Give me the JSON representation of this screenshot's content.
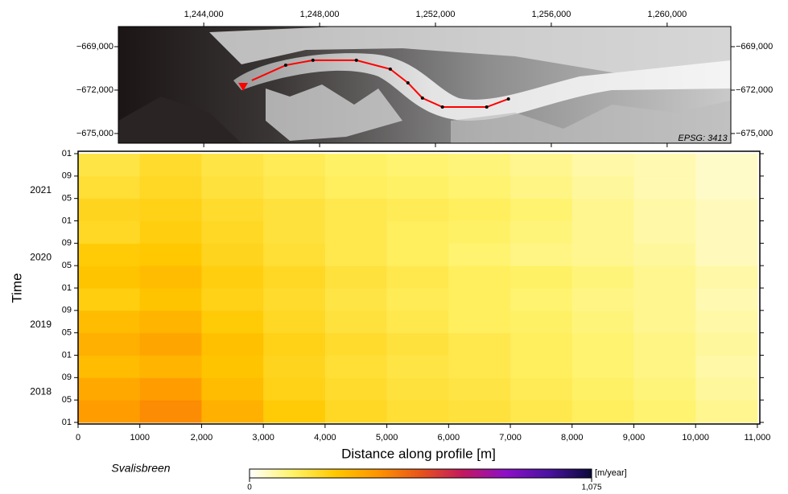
{
  "chart_data": [
    {
      "type": "line",
      "xlim": [
        1241050,
        1262200
      ],
      "ylim": [
        -675670,
        -667610
      ],
      "xticks": [
        {
          "value": 1244000,
          "label": "1,244,000"
        },
        {
          "value": 1248000,
          "label": "1,248,000"
        },
        {
          "value": 1252000,
          "label": "1,252,000"
        },
        {
          "value": 1256000,
          "label": "1,256,000"
        },
        {
          "value": 1260000,
          "label": "1,260,000"
        }
      ],
      "yticks": [
        {
          "value": -669000,
          "label": "−669,000"
        },
        {
          "value": -672000,
          "label": "−672,000"
        },
        {
          "value": -675000,
          "label": "−675,000"
        }
      ],
      "x": [
        1245660,
        1246830,
        1247770,
        1249270,
        1250440,
        1251050,
        1251550,
        1252240,
        1253770,
        1254520
      ],
      "series": [
        {
          "color": "#ff0000",
          "values": [
            -671330,
            -670280,
            -669940,
            -669940,
            -670550,
            -671500,
            -672550,
            -673170,
            -673170,
            -672610
          ]
        }
      ],
      "marker": {
        "x": 1245360,
        "y": -671780,
        "color": "#ff0000"
      },
      "annotation": "EPSG: 3413"
    },
    {
      "type": "heatmap",
      "title": "Svalisbreen",
      "x_label": "Distance along profile [m]",
      "y_label": "Time",
      "xlim": [
        0,
        11040
      ],
      "ylim": [
        "2018-01",
        "2022-01"
      ],
      "xticks": [
        0,
        {
          "value": 1000,
          "label": "1000"
        },
        {
          "value": 2000,
          "label": "2,000"
        },
        {
          "value": 3000,
          "label": "3,000"
        },
        {
          "value": 4000,
          "label": "4,000"
        },
        {
          "value": 5000,
          "label": "5,000"
        },
        {
          "value": 6000,
          "label": "6,000"
        },
        {
          "value": 7000,
          "label": "7,000"
        },
        {
          "value": 8000,
          "label": "8,000"
        },
        {
          "value": 9000,
          "label": "9,000"
        },
        {
          "value": 10000,
          "label": "10,000"
        },
        {
          "value": 11000,
          "label": "11,000"
        }
      ],
      "yticks": [
        {
          "value": "2018-01",
          "label": "01"
        },
        {
          "value": "2018-05",
          "label": "05"
        },
        {
          "value": "2018-09",
          "label": "09"
        },
        {
          "value": "2019-01",
          "label": "01"
        },
        {
          "value": "2019-05",
          "label": "05"
        },
        {
          "value": "2019-09",
          "label": "09"
        },
        {
          "value": "2020-01",
          "label": "01"
        },
        {
          "value": "2020-05",
          "label": "05"
        },
        {
          "value": "2020-09",
          "label": "09"
        },
        {
          "value": "2021-01",
          "label": "01"
        },
        {
          "value": "2021-05",
          "label": "05"
        },
        {
          "value": "2021-09",
          "label": "09"
        },
        {
          "value": "2022-01",
          "label": "01"
        }
      ],
      "year_labels": [
        "2018",
        "2019",
        "2020",
        "2021"
      ],
      "x_bins": [
        0,
        1000,
        2000,
        3000,
        4000,
        5000,
        6000,
        7000,
        8000,
        9000,
        10000,
        11000
      ],
      "y_bins": [
        "2018-01",
        "2018-05",
        "2018-09",
        "2019-01",
        "2019-05",
        "2019-09",
        "2020-01",
        "2020-05",
        "2020-09",
        "2021-01",
        "2021-05",
        "2021-09",
        "2022-01"
      ],
      "values": [
        [
          380,
          420,
          330,
          260,
          220,
          200,
          190,
          170,
          150,
          130,
          100
        ],
        [
          350,
          380,
          300,
          240,
          210,
          190,
          180,
          160,
          140,
          120,
          90
        ],
        [
          300,
          320,
          280,
          230,
          200,
          180,
          170,
          150,
          130,
          110,
          80
        ],
        [
          330,
          360,
          290,
          240,
          210,
          190,
          170,
          150,
          130,
          110,
          90
        ],
        [
          300,
          320,
          260,
          220,
          190,
          170,
          150,
          140,
          120,
          100,
          80
        ],
        [
          250,
          280,
          240,
          210,
          180,
          160,
          150,
          130,
          110,
          100,
          70
        ],
        [
          280,
          300,
          250,
          220,
          190,
          170,
          150,
          140,
          120,
          100,
          80
        ],
        [
          260,
          270,
          230,
          200,
          170,
          150,
          130,
          110,
          100,
          90,
          60
        ],
        [
          220,
          250,
          220,
          190,
          170,
          150,
          140,
          120,
          100,
          80,
          60
        ],
        [
          230,
          240,
          210,
          190,
          170,
          160,
          150,
          130,
          100,
          80,
          60
        ],
        [
          200,
          220,
          190,
          170,
          150,
          140,
          130,
          110,
          90,
          70,
          50
        ],
        [
          180,
          210,
          180,
          160,
          140,
          130,
          120,
          100,
          80,
          70,
          50
        ]
      ],
      "colorbar": {
        "range": [
          0,
          1075
        ],
        "ticks": [
          0,
          {
            "value": 1075,
            "label": "1,075"
          }
        ],
        "unit": "[m/year]",
        "colors": [
          "#ffffff",
          "#fff36a",
          "#ffc800",
          "#ff9400",
          "#e8541a",
          "#c21860",
          "#8c10c8",
          "#4a12a0",
          "#0a0a3a"
        ]
      }
    }
  ]
}
